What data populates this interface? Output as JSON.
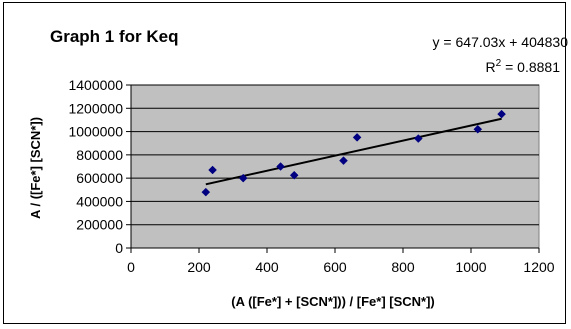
{
  "chart_data": {
    "type": "scatter",
    "title": "Graph 1 for Keq",
    "xlabel": "(A ([Fe*] + [SCN*])) / [Fe*] [SCN*])",
    "ylabel": "A / ([Fe*] [SCN*])",
    "xlim": [
      0,
      1200
    ],
    "ylim": [
      0,
      1400000
    ],
    "x_ticks": [
      "0",
      "200",
      "400",
      "600",
      "800",
      "1000",
      "1200"
    ],
    "y_ticks": [
      "0",
      "200000",
      "400000",
      "600000",
      "800000",
      "1000000",
      "1200000",
      "1400000"
    ],
    "grid": "horizontal",
    "plot_background": "#c0c0c0",
    "marker_color": "#000080",
    "series": [
      {
        "x": [
          220,
          240,
          330,
          440,
          480,
          625,
          665,
          845,
          1020,
          1090
        ],
        "y": [
          480000,
          670000,
          600000,
          700000,
          625000,
          750000,
          950000,
          940000,
          1020000,
          1150000
        ]
      }
    ],
    "trendline": {
      "slope": 647.03,
      "intercept": 404830,
      "x_range": [
        220,
        1090
      ],
      "equation_text": "y = 647.03x + 404830",
      "r2_label": "R",
      "r2_exp": "2",
      "r2_value_text": " = 0.8881"
    }
  }
}
